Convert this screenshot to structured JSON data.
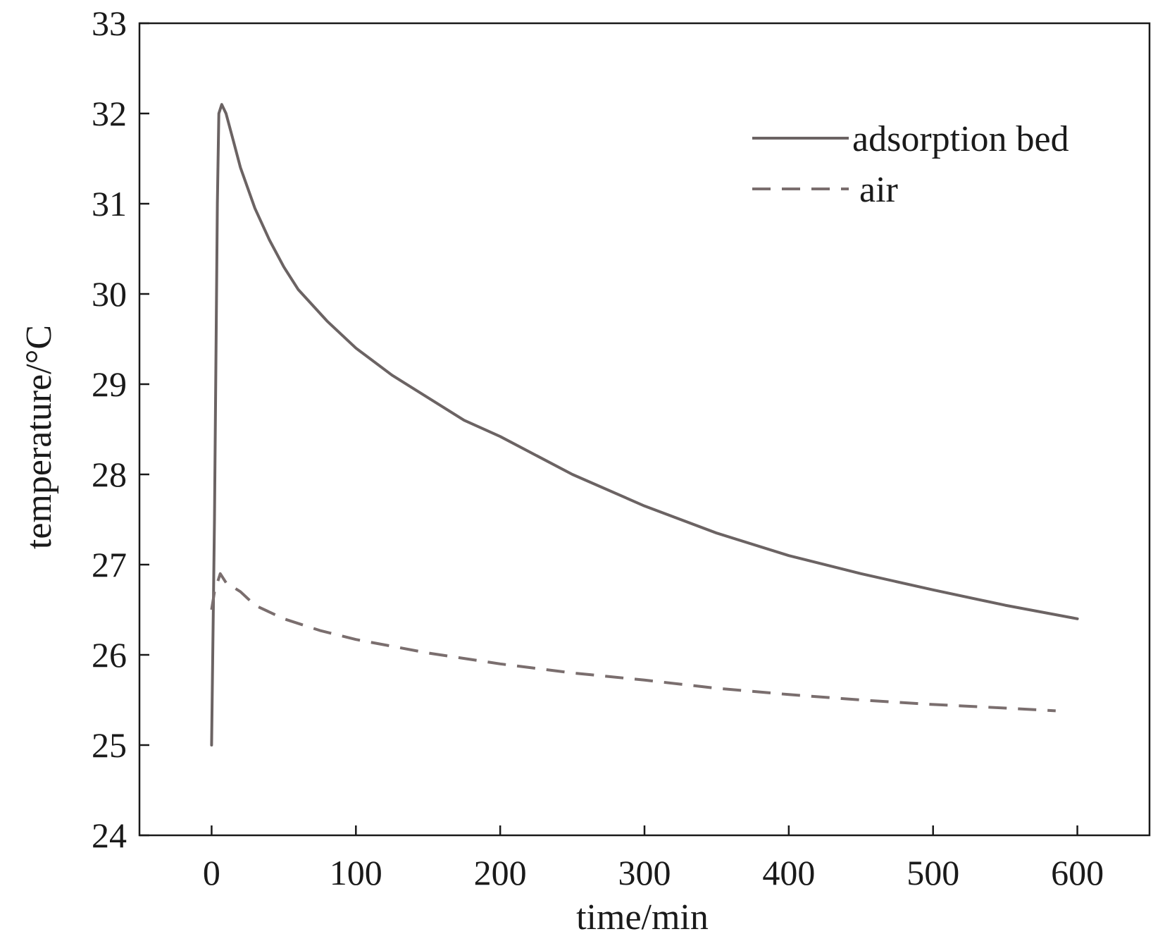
{
  "chart_data": {
    "type": "line",
    "xlabel": "time/min",
    "ylabel": "temperature/°C",
    "xlim": [
      -50,
      650
    ],
    "ylim": [
      24,
      33
    ],
    "xticks": [
      0,
      100,
      200,
      300,
      400,
      500,
      600
    ],
    "yticks": [
      24,
      25,
      26,
      27,
      28,
      29,
      30,
      31,
      32,
      33
    ],
    "legend_position": "top-right",
    "grid": false,
    "series": [
      {
        "name": "adsorption bed",
        "style": "solid",
        "color": "#6b6363",
        "points": [
          [
            0,
            25.0
          ],
          [
            2,
            27.5
          ],
          [
            4,
            31.0
          ],
          [
            5,
            32.0
          ],
          [
            7,
            32.1
          ],
          [
            10,
            32.0
          ],
          [
            15,
            31.7
          ],
          [
            20,
            31.4
          ],
          [
            30,
            30.95
          ],
          [
            40,
            30.6
          ],
          [
            50,
            30.3
          ],
          [
            60,
            30.05
          ],
          [
            80,
            29.7
          ],
          [
            100,
            29.4
          ],
          [
            125,
            29.1
          ],
          [
            150,
            28.85
          ],
          [
            175,
            28.6
          ],
          [
            200,
            28.42
          ],
          [
            250,
            28.0
          ],
          [
            300,
            27.65
          ],
          [
            350,
            27.35
          ],
          [
            400,
            27.1
          ],
          [
            450,
            26.9
          ],
          [
            500,
            26.72
          ],
          [
            550,
            26.55
          ],
          [
            600,
            26.4
          ]
        ]
      },
      {
        "name": "air",
        "style": "dashed",
        "color": "#7a6e6e",
        "points": [
          [
            0,
            26.5
          ],
          [
            2,
            26.7
          ],
          [
            4,
            26.8
          ],
          [
            6,
            26.9
          ],
          [
            10,
            26.8
          ],
          [
            20,
            26.7
          ],
          [
            30,
            26.55
          ],
          [
            50,
            26.4
          ],
          [
            75,
            26.27
          ],
          [
            100,
            26.17
          ],
          [
            150,
            26.02
          ],
          [
            200,
            25.9
          ],
          [
            250,
            25.8
          ],
          [
            300,
            25.72
          ],
          [
            350,
            25.63
          ],
          [
            400,
            25.56
          ],
          [
            450,
            25.5
          ],
          [
            500,
            25.45
          ],
          [
            550,
            25.41
          ],
          [
            585,
            25.38
          ]
        ]
      }
    ]
  }
}
